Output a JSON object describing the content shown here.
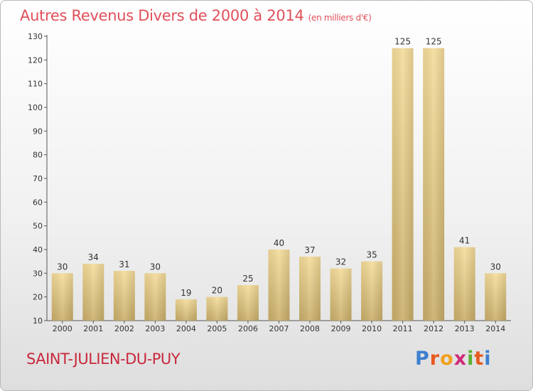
{
  "title": "Autres Revenus Divers de 2000 à 2014",
  "title_unit": "(en milliers d'€)",
  "town": "SAINT-JULIEN-DU-PUY",
  "logo": {
    "letters": [
      "P",
      "r",
      "o",
      "x",
      "i",
      "t",
      "i"
    ],
    "colors": [
      "#3d7fd0",
      "#e85a1e",
      "#f0a020",
      "#d02a7a",
      "#5cb030",
      "#e85a1e",
      "#3d7fd0"
    ]
  },
  "colors": {
    "bar_light": "#f5dc9a",
    "bar_dark": "#c9ae6a",
    "town": "#c8283c",
    "title": "#e0505a"
  },
  "chart_data": {
    "type": "bar",
    "categories": [
      "2000",
      "2001",
      "2002",
      "2003",
      "2004",
      "2005",
      "2006",
      "2007",
      "2008",
      "2009",
      "2010",
      "2011",
      "2012",
      "2013",
      "2014"
    ],
    "values": [
      30,
      34,
      31,
      30,
      19,
      20,
      25,
      40,
      37,
      32,
      35,
      125,
      125,
      41,
      30
    ],
    "ylim": [
      10,
      130
    ],
    "yticks": [
      10,
      20,
      30,
      40,
      50,
      60,
      70,
      80,
      90,
      100,
      110,
      120,
      130
    ],
    "grid": false
  }
}
